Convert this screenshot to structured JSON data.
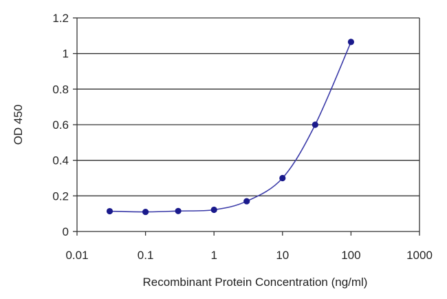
{
  "chart_data": {
    "type": "line",
    "title": "",
    "xlabel": "Recombinant Protein Concentration (ng/ml)",
    "ylabel": "OD 450",
    "x_scale": "log",
    "xlim": [
      0.01,
      1000
    ],
    "ylim": [
      0,
      1.2
    ],
    "x_ticks": [
      "0.01",
      "0.1",
      "1",
      "10",
      "100",
      "1000"
    ],
    "y_ticks": [
      "0",
      "0.2",
      "0.4",
      "0.6",
      "0.8",
      "1",
      "1.2"
    ],
    "grid": "horizontal",
    "legend": "none",
    "series": [
      {
        "x": [
          0.03,
          0.1,
          0.3,
          1,
          3,
          10,
          30,
          100
        ],
        "y": [
          0.114,
          0.11,
          0.115,
          0.122,
          0.17,
          0.3,
          0.6,
          1.065
        ]
      }
    ],
    "colors": {
      "line": "#3a3aa8",
      "marker": "#1a1a8c",
      "grid": "#333333"
    }
  }
}
